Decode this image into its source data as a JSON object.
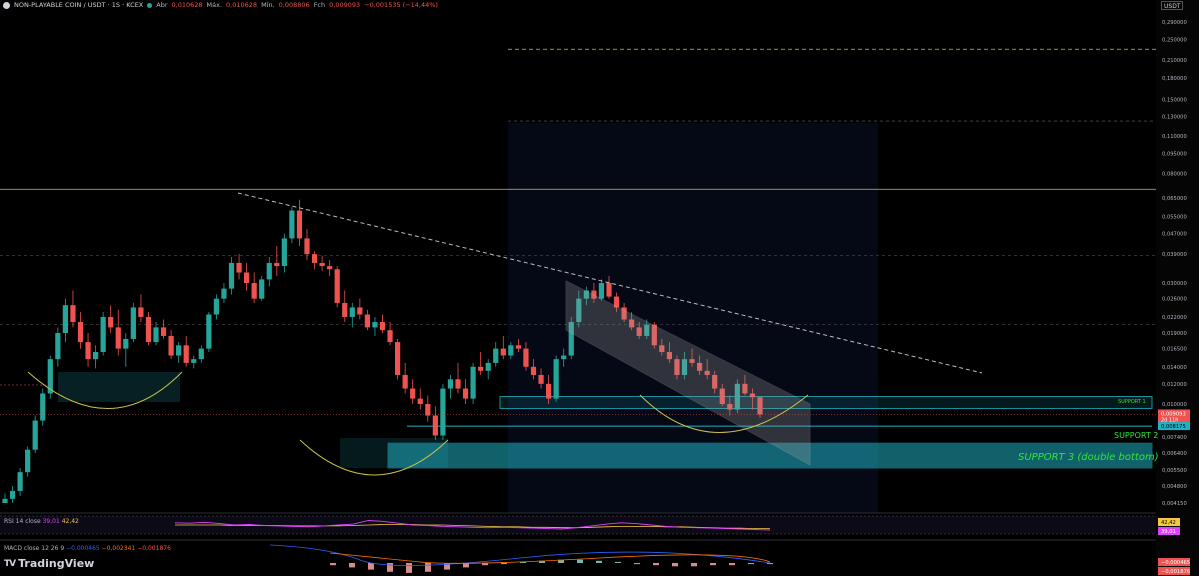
{
  "header": {
    "symbol": "NON-PLAYABLE COIN / USDT · 1S · KCEX",
    "open_label": "Abr",
    "open": "0,010628",
    "high_label": "Máx.",
    "high": "0,010628",
    "low_label": "Mín.",
    "low": "0,008806",
    "close_label": "Fch",
    "close": "0,009093",
    "change": "−0,001535 (−14,44%)"
  },
  "currency": "USDT",
  "price_axis": {
    "ticks": [
      "0,290000",
      "0,250000",
      "0,210000",
      "0,180000",
      "0,150000",
      "0,130000",
      "0,110000",
      "0,095000",
      "0,080000",
      "0,065000",
      "0,055000",
      "0,047000",
      "0,039000",
      "0,030000",
      "0,026000",
      "0,022000",
      "0,019000",
      "0,016500",
      "0,014000",
      "0,012000",
      "0,010000",
      "0,007400",
      "0,006400",
      "0,005500",
      "0,004800",
      "0,004150"
    ],
    "current_price": "0,009093",
    "countdown": "2d 11h",
    "support2_price": "0,008175"
  },
  "annotations": {
    "support1": "SUPPORT 1",
    "support2": "SUPPORT 2",
    "support3": "SUPPORT 3 (double bottom)"
  },
  "rsi": {
    "label": "RSI 14 close",
    "value1": "39,01",
    "value2": "42,42"
  },
  "macd": {
    "label": "MACD close 12 26 9",
    "macd": "−0,000465",
    "signal": "−0,002341",
    "hist": "−0,001876"
  },
  "brand": "TradingView",
  "colors": {
    "up": "#26a69a",
    "down": "#ef5350",
    "zone": "#1fb1c4",
    "support_text": "#2ee63c",
    "level_line": "#c9c34a"
  },
  "chart_data": {
    "type": "candlestick",
    "scale": "log",
    "candles": [
      {
        "o": 0.00415,
        "h": 0.0045,
        "l": 0.004,
        "c": 0.0043
      },
      {
        "o": 0.0043,
        "h": 0.0048,
        "l": 0.0041,
        "c": 0.0046
      },
      {
        "o": 0.0046,
        "h": 0.0056,
        "l": 0.0044,
        "c": 0.0054
      },
      {
        "o": 0.0054,
        "h": 0.0068,
        "l": 0.0052,
        "c": 0.0066
      },
      {
        "o": 0.0066,
        "h": 0.009,
        "l": 0.0064,
        "c": 0.0086
      },
      {
        "o": 0.0086,
        "h": 0.0115,
        "l": 0.0082,
        "c": 0.011
      },
      {
        "o": 0.011,
        "h": 0.0155,
        "l": 0.0105,
        "c": 0.015
      },
      {
        "o": 0.015,
        "h": 0.02,
        "l": 0.014,
        "c": 0.019
      },
      {
        "o": 0.019,
        "h": 0.026,
        "l": 0.0175,
        "c": 0.0245
      },
      {
        "o": 0.0245,
        "h": 0.028,
        "l": 0.02,
        "c": 0.021
      },
      {
        "o": 0.021,
        "h": 0.023,
        "l": 0.0165,
        "c": 0.0175
      },
      {
        "o": 0.0175,
        "h": 0.019,
        "l": 0.014,
        "c": 0.015
      },
      {
        "o": 0.015,
        "h": 0.017,
        "l": 0.0138,
        "c": 0.016
      },
      {
        "o": 0.016,
        "h": 0.023,
        "l": 0.0155,
        "c": 0.022
      },
      {
        "o": 0.022,
        "h": 0.0245,
        "l": 0.019,
        "c": 0.02
      },
      {
        "o": 0.02,
        "h": 0.0235,
        "l": 0.0155,
        "c": 0.0165
      },
      {
        "o": 0.0165,
        "h": 0.019,
        "l": 0.014,
        "c": 0.018
      },
      {
        "o": 0.018,
        "h": 0.025,
        "l": 0.0175,
        "c": 0.024
      },
      {
        "o": 0.024,
        "h": 0.027,
        "l": 0.021,
        "c": 0.022
      },
      {
        "o": 0.022,
        "h": 0.023,
        "l": 0.017,
        "c": 0.0175
      },
      {
        "o": 0.0175,
        "h": 0.021,
        "l": 0.017,
        "c": 0.02
      },
      {
        "o": 0.02,
        "h": 0.0215,
        "l": 0.018,
        "c": 0.0185
      },
      {
        "o": 0.0185,
        "h": 0.0195,
        "l": 0.015,
        "c": 0.0155
      },
      {
        "o": 0.0155,
        "h": 0.0175,
        "l": 0.0145,
        "c": 0.017
      },
      {
        "o": 0.017,
        "h": 0.0185,
        "l": 0.014,
        "c": 0.0145
      },
      {
        "o": 0.0145,
        "h": 0.0155,
        "l": 0.0138,
        "c": 0.015
      },
      {
        "o": 0.015,
        "h": 0.017,
        "l": 0.0145,
        "c": 0.0165
      },
      {
        "o": 0.0165,
        "h": 0.023,
        "l": 0.016,
        "c": 0.0225
      },
      {
        "o": 0.0225,
        "h": 0.027,
        "l": 0.0215,
        "c": 0.026
      },
      {
        "o": 0.026,
        "h": 0.03,
        "l": 0.025,
        "c": 0.0285
      },
      {
        "o": 0.0285,
        "h": 0.038,
        "l": 0.027,
        "c": 0.036
      },
      {
        "o": 0.036,
        "h": 0.039,
        "l": 0.031,
        "c": 0.033
      },
      {
        "o": 0.033,
        "h": 0.036,
        "l": 0.028,
        "c": 0.03
      },
      {
        "o": 0.03,
        "h": 0.033,
        "l": 0.025,
        "c": 0.026
      },
      {
        "o": 0.026,
        "h": 0.032,
        "l": 0.0255,
        "c": 0.031
      },
      {
        "o": 0.031,
        "h": 0.038,
        "l": 0.029,
        "c": 0.036
      },
      {
        "o": 0.036,
        "h": 0.042,
        "l": 0.032,
        "c": 0.035
      },
      {
        "o": 0.035,
        "h": 0.047,
        "l": 0.033,
        "c": 0.045
      },
      {
        "o": 0.045,
        "h": 0.06,
        "l": 0.043,
        "c": 0.058
      },
      {
        "o": 0.058,
        "h": 0.064,
        "l": 0.042,
        "c": 0.045
      },
      {
        "o": 0.045,
        "h": 0.049,
        "l": 0.037,
        "c": 0.039
      },
      {
        "o": 0.039,
        "h": 0.04,
        "l": 0.034,
        "c": 0.036
      },
      {
        "o": 0.036,
        "h": 0.0385,
        "l": 0.0335,
        "c": 0.035
      },
      {
        "o": 0.035,
        "h": 0.037,
        "l": 0.032,
        "c": 0.034
      },
      {
        "o": 0.034,
        "h": 0.035,
        "l": 0.024,
        "c": 0.025
      },
      {
        "o": 0.025,
        "h": 0.028,
        "l": 0.021,
        "c": 0.022
      },
      {
        "o": 0.022,
        "h": 0.025,
        "l": 0.02,
        "c": 0.024
      },
      {
        "o": 0.024,
        "h": 0.026,
        "l": 0.0215,
        "c": 0.0225
      },
      {
        "o": 0.0225,
        "h": 0.0235,
        "l": 0.0195,
        "c": 0.02
      },
      {
        "o": 0.02,
        "h": 0.022,
        "l": 0.0185,
        "c": 0.021
      },
      {
        "o": 0.021,
        "h": 0.0225,
        "l": 0.019,
        "c": 0.0195
      },
      {
        "o": 0.0195,
        "h": 0.021,
        "l": 0.017,
        "c": 0.0175
      },
      {
        "o": 0.0175,
        "h": 0.018,
        "l": 0.0125,
        "c": 0.013
      },
      {
        "o": 0.013,
        "h": 0.0145,
        "l": 0.011,
        "c": 0.0115
      },
      {
        "o": 0.0115,
        "h": 0.0125,
        "l": 0.01,
        "c": 0.0105
      },
      {
        "o": 0.0105,
        "h": 0.0115,
        "l": 0.0095,
        "c": 0.01
      },
      {
        "o": 0.01,
        "h": 0.0108,
        "l": 0.0085,
        "c": 0.009
      },
      {
        "o": 0.009,
        "h": 0.0098,
        "l": 0.0072,
        "c": 0.0075
      },
      {
        "o": 0.0075,
        "h": 0.012,
        "l": 0.0072,
        "c": 0.0115
      },
      {
        "o": 0.0115,
        "h": 0.013,
        "l": 0.0105,
        "c": 0.0125
      },
      {
        "o": 0.0125,
        "h": 0.0145,
        "l": 0.011,
        "c": 0.0115
      },
      {
        "o": 0.0115,
        "h": 0.0125,
        "l": 0.01,
        "c": 0.0105
      },
      {
        "o": 0.0105,
        "h": 0.0145,
        "l": 0.01,
        "c": 0.014
      },
      {
        "o": 0.014,
        "h": 0.016,
        "l": 0.013,
        "c": 0.0135
      },
      {
        "o": 0.0135,
        "h": 0.015,
        "l": 0.0125,
        "c": 0.0145
      },
      {
        "o": 0.0145,
        "h": 0.0175,
        "l": 0.014,
        "c": 0.0165
      },
      {
        "o": 0.0165,
        "h": 0.0185,
        "l": 0.015,
        "c": 0.0155
      },
      {
        "o": 0.0155,
        "h": 0.0175,
        "l": 0.015,
        "c": 0.017
      },
      {
        "o": 0.017,
        "h": 0.018,
        "l": 0.016,
        "c": 0.0165
      },
      {
        "o": 0.0165,
        "h": 0.0175,
        "l": 0.0135,
        "c": 0.014
      },
      {
        "o": 0.014,
        "h": 0.015,
        "l": 0.0125,
        "c": 0.013
      },
      {
        "o": 0.013,
        "h": 0.0138,
        "l": 0.0115,
        "c": 0.012
      },
      {
        "o": 0.012,
        "h": 0.013,
        "l": 0.01,
        "c": 0.0105
      },
      {
        "o": 0.0105,
        "h": 0.0155,
        "l": 0.0102,
        "c": 0.015
      },
      {
        "o": 0.015,
        "h": 0.0165,
        "l": 0.014,
        "c": 0.0155
      },
      {
        "o": 0.0155,
        "h": 0.022,
        "l": 0.015,
        "c": 0.021
      },
      {
        "o": 0.021,
        "h": 0.028,
        "l": 0.02,
        "c": 0.026
      },
      {
        "o": 0.026,
        "h": 0.029,
        "l": 0.0245,
        "c": 0.028
      },
      {
        "o": 0.028,
        "h": 0.03,
        "l": 0.025,
        "c": 0.026
      },
      {
        "o": 0.026,
        "h": 0.031,
        "l": 0.0255,
        "c": 0.03
      },
      {
        "o": 0.03,
        "h": 0.032,
        "l": 0.026,
        "c": 0.0265
      },
      {
        "o": 0.0265,
        "h": 0.0275,
        "l": 0.023,
        "c": 0.024
      },
      {
        "o": 0.024,
        "h": 0.025,
        "l": 0.021,
        "c": 0.0215
      },
      {
        "o": 0.0215,
        "h": 0.023,
        "l": 0.0195,
        "c": 0.02
      },
      {
        "o": 0.02,
        "h": 0.021,
        "l": 0.018,
        "c": 0.0185
      },
      {
        "o": 0.0185,
        "h": 0.0215,
        "l": 0.018,
        "c": 0.0205
      },
      {
        "o": 0.0205,
        "h": 0.021,
        "l": 0.0165,
        "c": 0.017
      },
      {
        "o": 0.017,
        "h": 0.018,
        "l": 0.0155,
        "c": 0.016
      },
      {
        "o": 0.016,
        "h": 0.0175,
        "l": 0.0145,
        "c": 0.015
      },
      {
        "o": 0.015,
        "h": 0.0155,
        "l": 0.0125,
        "c": 0.013
      },
      {
        "o": 0.013,
        "h": 0.016,
        "l": 0.0125,
        "c": 0.015
      },
      {
        "o": 0.015,
        "h": 0.0165,
        "l": 0.014,
        "c": 0.0145
      },
      {
        "o": 0.0145,
        "h": 0.0155,
        "l": 0.013,
        "c": 0.0135
      },
      {
        "o": 0.0135,
        "h": 0.015,
        "l": 0.0125,
        "c": 0.013
      },
      {
        "o": 0.013,
        "h": 0.0135,
        "l": 0.011,
        "c": 0.0115
      },
      {
        "o": 0.0115,
        "h": 0.012,
        "l": 0.0098,
        "c": 0.01
      },
      {
        "o": 0.01,
        "h": 0.0108,
        "l": 0.009,
        "c": 0.0095
      },
      {
        "o": 0.0095,
        "h": 0.0125,
        "l": 0.0092,
        "c": 0.012
      },
      {
        "o": 0.012,
        "h": 0.013,
        "l": 0.0108,
        "c": 0.011
      },
      {
        "o": 0.011,
        "h": 0.0115,
        "l": 0.0095,
        "c": 0.01063
      },
      {
        "o": 0.01063,
        "h": 0.01063,
        "l": 0.00881,
        "c": 0.00909
      }
    ],
    "levels": [
      0.23,
      0.125,
      0.07,
      0.0385,
      0.0205
    ],
    "support_zones": [
      {
        "name": "SUPPORT 1",
        "from": 0.0096,
        "to": 0.0107
      },
      {
        "name": "SUPPORT 2",
        "price": 0.008175
      },
      {
        "name": "SUPPORT 3 (double bottom)",
        "from": 0.0056,
        "to": 0.007
      }
    ],
    "rsi": [
      55,
      54,
      56,
      53,
      50,
      51,
      49,
      48,
      47,
      46,
      48,
      50,
      52,
      60,
      58,
      54,
      50,
      49,
      47,
      46,
      45,
      44,
      45,
      44,
      43,
      42,
      41,
      44,
      48,
      52,
      55,
      53,
      50,
      47,
      45,
      44,
      43,
      42,
      41,
      40,
      39
    ],
    "rsi_signal": [
      50,
      50,
      50,
      50,
      49,
      49,
      49,
      49,
      48,
      48,
      48,
      48,
      49,
      50,
      51,
      51,
      51,
      50,
      50,
      49,
      48,
      47,
      46,
      46,
      45,
      45,
      44,
      44,
      45,
      46,
      47,
      47,
      47,
      46,
      46,
      45,
      44,
      43,
      43,
      42,
      42
    ],
    "macd_hist": [
      -2,
      -4,
      -6,
      -8,
      -9,
      -8,
      -6,
      -4,
      -2,
      -1,
      1,
      2,
      3,
      3,
      2,
      1,
      -1,
      -2,
      -3,
      -3,
      -2,
      -2,
      -1,
      -1
    ]
  }
}
